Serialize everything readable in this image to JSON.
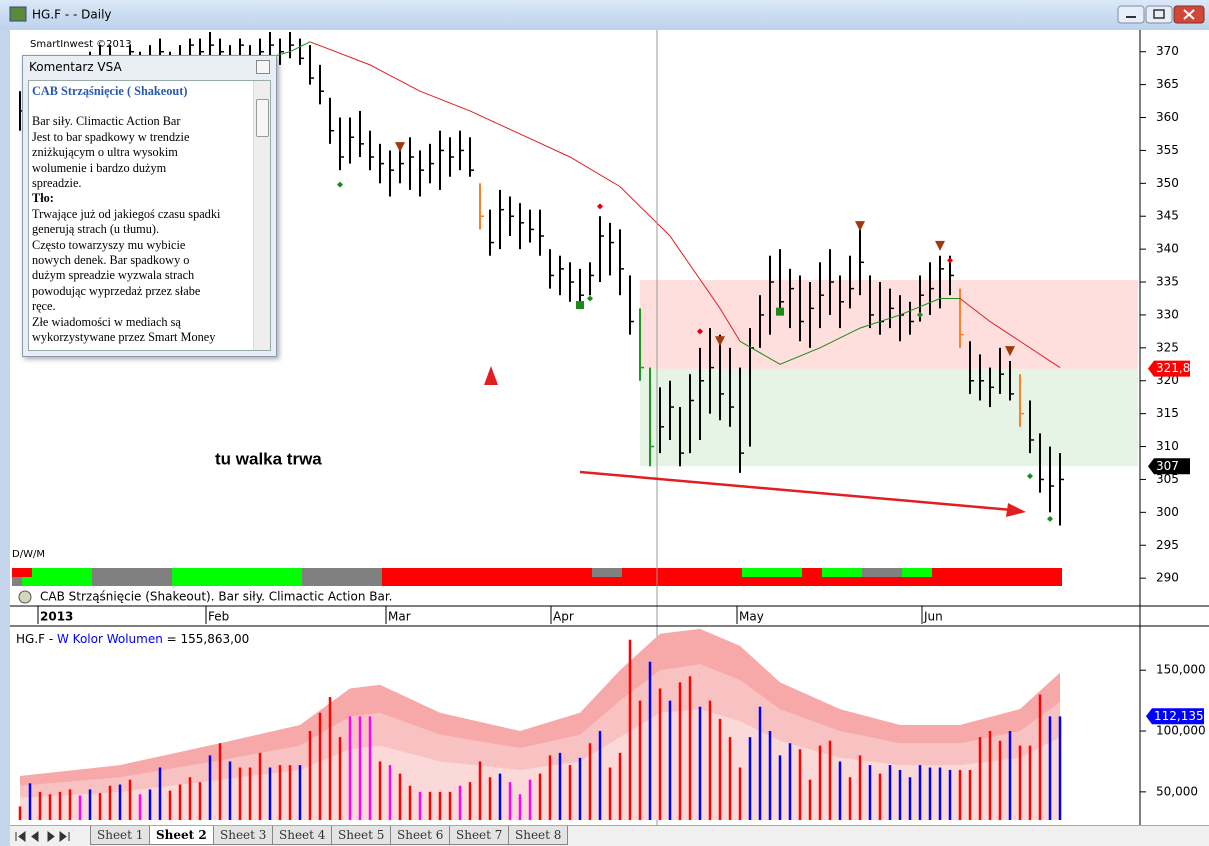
{
  "window": {
    "title": "HG.F -  - Daily"
  },
  "watermark": "SmartInwest ©2013",
  "chart_data": [
    {
      "type": "ohlc",
      "color": "#000000",
      "xlim": [
        -1,
        112
      ],
      "xticks": [
        {
          "value": 1.8,
          "label": "2013"
        },
        {
          "value": 18.6,
          "label": "Feb"
        },
        {
          "value": 36.6,
          "label": "Mar"
        },
        {
          "value": 53.1,
          "label": "Apr"
        },
        {
          "value": 71.7,
          "label": "May"
        },
        {
          "value": 90.2,
          "label": "Jun"
        }
      ],
      "ylim": [
        288.2,
        373.3
      ],
      "yticks": [
        290,
        295,
        300,
        305,
        310,
        315,
        320,
        325,
        330,
        335,
        340,
        345,
        350,
        355,
        360,
        365,
        370
      ],
      "low": [
        358,
        357,
        359,
        361,
        362,
        363,
        362,
        364,
        365,
        366,
        364,
        366,
        365,
        366,
        367,
        365,
        366,
        367,
        368,
        369,
        368,
        367,
        368,
        367,
        368,
        369,
        368,
        369,
        368,
        365,
        362,
        356,
        352,
        353,
        354,
        352,
        350,
        348,
        350,
        349,
        348,
        350,
        349,
        351,
        352,
        351,
        343,
        339,
        340,
        342,
        340,
        341,
        339,
        334,
        333,
        332,
        331,
        333,
        335,
        336,
        333,
        327,
        320,
        307,
        309,
        311,
        307,
        309,
        311,
        315,
        314,
        313,
        306,
        310,
        325,
        327,
        330,
        328,
        326,
        325,
        328,
        330,
        328,
        331,
        333,
        328,
        327,
        328,
        326,
        327,
        329,
        330,
        331,
        333,
        325,
        318,
        317,
        316,
        318,
        317,
        313,
        309,
        303,
        300,
        298
      ],
      "high": [
        364,
        363,
        366,
        367,
        368,
        368,
        367,
        370,
        371,
        371,
        369,
        371,
        370,
        371,
        372,
        370,
        371,
        372,
        372,
        373,
        372,
        371,
        372,
        371,
        372,
        373,
        372,
        373,
        372,
        371,
        368,
        363,
        360,
        360,
        361,
        358,
        356,
        355,
        356,
        357,
        355,
        356,
        358,
        357,
        358,
        357,
        350,
        346,
        349,
        348,
        347,
        346,
        346,
        340,
        339,
        338,
        337,
        338,
        345,
        344,
        343,
        336,
        331,
        322,
        319,
        320,
        316,
        321,
        325,
        328,
        327,
        325,
        322,
        328,
        333,
        339,
        340,
        337,
        336,
        335,
        338,
        340,
        336,
        339,
        343,
        336,
        335,
        334,
        333,
        332,
        336,
        338,
        339,
        339,
        334,
        326,
        324,
        322,
        325,
        323,
        321,
        317,
        312,
        310,
        309
      ],
      "close": [
        361,
        360,
        364,
        365,
        366,
        364,
        365,
        368,
        369,
        367,
        368,
        370,
        366,
        369,
        370,
        368,
        369,
        371,
        370,
        371,
        370,
        369,
        371,
        368,
        370,
        371,
        370,
        371,
        369,
        366,
        364,
        358,
        354,
        357,
        356,
        354,
        353,
        352,
        353,
        354,
        352,
        353,
        355,
        354,
        355,
        352,
        345,
        341,
        346,
        345,
        344,
        343,
        342,
        336,
        337,
        335,
        333,
        336,
        342,
        341,
        337,
        329,
        322,
        310,
        313,
        316,
        309,
        317,
        320,
        322,
        318,
        316,
        309,
        325,
        330,
        335,
        332,
        334,
        329,
        331,
        333,
        335,
        332,
        334,
        338,
        330,
        329,
        331,
        330,
        329,
        333,
        334,
        337,
        336,
        327,
        320,
        320,
        319,
        321,
        318,
        315,
        311,
        305,
        304,
        305
      ],
      "highlights": [
        {
          "index": 46,
          "color": "#ff7f27"
        },
        {
          "index": 62,
          "color": "#1a9a1a"
        },
        {
          "index": 63,
          "color": "#1a9a1a"
        },
        {
          "index": 94,
          "color": "#ff7f27"
        },
        {
          "index": 100,
          "color": "#ff7f27"
        }
      ],
      "moving_average": [
        {
          "color": "#e02020",
          "x": [
            29,
            35,
            40,
            45,
            50,
            55,
            60,
            65,
            70,
            72,
            null,
            94,
            97,
            100,
            104
          ],
          "values": [
            371.5,
            368,
            364,
            361,
            357.5,
            354,
            349.5,
            342,
            331,
            326,
            null,
            332.5,
            329,
            326,
            322
          ]
        },
        {
          "color": "#1a8a1a",
          "x": [
            12,
            20,
            27,
            29,
            null,
            72,
            76,
            80,
            84,
            88,
            92,
            94
          ],
          "values": [
            362,
            367,
            370,
            371.5,
            null,
            326,
            322.5,
            325,
            328,
            330,
            332.5,
            332.5
          ]
        }
      ],
      "signals": [
        {
          "index": 38,
          "value": 355.5,
          "shape": "triangle",
          "color": "#a0380a"
        },
        {
          "index": 70,
          "value": 326,
          "shape": "triangle",
          "color": "#a0380a"
        },
        {
          "index": 84,
          "value": 343.5,
          "shape": "triangle",
          "color": "#a0380a"
        },
        {
          "index": 92,
          "value": 340.5,
          "shape": "triangle",
          "color": "#a0380a"
        },
        {
          "index": 99,
          "value": 324.5,
          "shape": "triangle",
          "color": "#a0380a"
        },
        {
          "index": 32,
          "value": 349.8,
          "shape": "diamond",
          "color": "#1a8a1a"
        },
        {
          "index": 58,
          "value": 346.5,
          "shape": "diamond",
          "color": "#e00000"
        },
        {
          "index": 57,
          "value": 332.5,
          "shape": "diamond",
          "color": "#1a8a1a"
        },
        {
          "index": 68,
          "value": 327.5,
          "shape": "diamond",
          "color": "#e00000"
        },
        {
          "index": 93,
          "value": 338.3,
          "shape": "diamond",
          "color": "#e00000"
        },
        {
          "index": 90,
          "value": 330,
          "shape": "diamond",
          "color": "#1a8a1a"
        },
        {
          "index": 101,
          "value": 305.5,
          "shape": "diamond",
          "color": "#1a8a1a"
        },
        {
          "index": 103,
          "value": 299,
          "shape": "diamond",
          "color": "#1a8a1a"
        },
        {
          "index": 56,
          "value": 331.5,
          "shape": "square",
          "color": "#1a8a1a"
        },
        {
          "index": 76,
          "value": 330.5,
          "shape": "square",
          "color": "#1a8a1a"
        }
      ],
      "zones": [
        {
          "from": 321.8,
          "to": 335.3,
          "x_from": 62,
          "color": "#ffdede"
        },
        {
          "from": 307,
          "to": 321.8,
          "x_from": 62,
          "color": "#e6f4e6"
        }
      ],
      "price_labels": [
        {
          "value": 321.845,
          "label": "321,845",
          "color": "#ff0000"
        },
        {
          "value": 307,
          "label": "307",
          "color": "#000000"
        }
      ],
      "status_strip": [
        [
          [
            0,
            2,
            "#ff0000"
          ],
          [
            2,
            8,
            "#00ff00"
          ],
          [
            8,
            16,
            "#808080"
          ],
          [
            16,
            29,
            "#00ff00"
          ],
          [
            29,
            37,
            "#808080"
          ],
          [
            37,
            58,
            "#ff0000"
          ],
          [
            58,
            61,
            "#808080"
          ],
          [
            61,
            73,
            "#ff0000"
          ],
          [
            73,
            79,
            "#00ff00"
          ],
          [
            79,
            81,
            "#ff0000"
          ],
          [
            81,
            85,
            "#00ff00"
          ],
          [
            85,
            89,
            "#808080"
          ],
          [
            89,
            92,
            "#00ff00"
          ],
          [
            92,
            105,
            "#ff0000"
          ]
        ],
        [
          [
            0,
            1,
            "#808080"
          ],
          [
            1,
            8,
            "#00ff00"
          ],
          [
            8,
            16,
            "#808080"
          ],
          [
            16,
            29,
            "#00ff00"
          ],
          [
            29,
            37,
            "#808080"
          ],
          [
            37,
            105,
            "#ff0000"
          ]
        ]
      ],
      "period_label": "D/W/M",
      "legend_text": "CAB Strząśnięcie (Shakeout). Bar siły. Climactic Action Bar.",
      "annotation": "tu walka trwa"
    },
    {
      "type": "volume",
      "title": "HG.F - ",
      "indicator": "W Kolor Wolumen",
      "readout": " = 155,863,00",
      "xlim": [
        -1,
        112
      ],
      "ylim": [
        26860,
        184700
      ],
      "yticks": [
        {
          "value": 50000,
          "label": "50,000"
        },
        {
          "value": 100000,
          "label": "100,000"
        },
        {
          "value": 150000,
          "label": "150,000"
        }
      ],
      "values": [
        38000,
        57000,
        50000,
        48000,
        50000,
        52000,
        47000,
        52000,
        49000,
        55000,
        56000,
        60000,
        48000,
        52000,
        70000,
        51000,
        56000,
        62000,
        58000,
        80000,
        90000,
        75000,
        70000,
        70000,
        82000,
        70000,
        72000,
        72000,
        72000,
        100000,
        115000,
        128000,
        95000,
        112000,
        112000,
        112000,
        75000,
        72000,
        65000,
        55000,
        50000,
        50000,
        50000,
        50000,
        55000,
        58000,
        75000,
        62000,
        65000,
        58000,
        48000,
        60000,
        65000,
        80000,
        82000,
        72000,
        78000,
        90000,
        100000,
        70000,
        82000,
        175000,
        125000,
        157000,
        135000,
        125000,
        140000,
        145000,
        120000,
        125000,
        110000,
        95000,
        70000,
        95000,
        120000,
        100000,
        80000,
        90000,
        85000,
        60000,
        88000,
        92000,
        75000,
        62000,
        80000,
        72000,
        65000,
        72000,
        68000,
        62000,
        72000,
        70000,
        70000,
        68000,
        68000,
        68000,
        95000,
        100000,
        92000,
        100000,
        88000,
        88000,
        130000,
        112000,
        112000
      ],
      "colors": [
        "#ff0000",
        "#0000ff",
        "#ff0000",
        "#ff0000",
        "#ff0000",
        "#ff0000",
        "#ff00ff",
        "#0000ff",
        "#ff0000",
        "#ff0000",
        "#0000ff",
        "#ff0000",
        "#ff00ff",
        "#0000ff",
        "#0000ff",
        "#ff0000",
        "#ff0000",
        "#ff0000",
        "#ff0000",
        "#0000ff",
        "#ff0000",
        "#0000ff",
        "#ff0000",
        "#ff0000",
        "#ff0000",
        "#0000ff",
        "#ff0000",
        "#ff0000",
        "#0000ff",
        "#ff0000",
        "#ff0000",
        "#ff0000",
        "#ff0000",
        "#ff00ff",
        "#ff00ff",
        "#ff00ff",
        "#ff0000",
        "#ff00ff",
        "#ff0000",
        "#ff0000",
        "#ff00ff",
        "#ff0000",
        "#ff0000",
        "#ff0000",
        "#ff00ff",
        "#ff0000",
        "#ff0000",
        "#ff0000",
        "#0000ff",
        "#ff00ff",
        "#ff00ff",
        "#ff00ff",
        "#ff0000",
        "#ff0000",
        "#0000ff",
        "#ff0000",
        "#0000ff",
        "#ff0000",
        "#0000ff",
        "#ff0000",
        "#ff0000",
        "#ff0000",
        "#ff0000",
        "#0000ff",
        "#ff0000",
        "#0000ff",
        "#ff0000",
        "#ff0000",
        "#0000ff",
        "#ff0000",
        "#ff0000",
        "#ff0000",
        "#ff0000",
        "#0000ff",
        "#0000ff",
        "#0000ff",
        "#0000ff",
        "#0000ff",
        "#ff0000",
        "#ff0000",
        "#ff0000",
        "#ff0000",
        "#0000ff",
        "#ff0000",
        "#ff0000",
        "#0000ff",
        "#ff0000",
        "#0000ff",
        "#0000ff",
        "#0000ff",
        "#0000ff",
        "#0000ff",
        "#0000ff",
        "#0000ff",
        "#ff0000",
        "#ff0000",
        "#ff0000",
        "#ff0000",
        "#ff0000",
        "#0000ff",
        "#ff0000",
        "#ff0000",
        "#ff0000",
        "#0000ff",
        "#0000ff"
      ],
      "bands": [
        {
          "color": "#f7a8a8",
          "x": [
            0,
            10,
            20,
            28,
            33,
            36,
            42,
            50,
            56,
            60,
            64,
            68,
            72,
            76,
            82,
            88,
            94,
            100,
            104
          ],
          "values": [
            63000,
            72000,
            90000,
            105000,
            135000,
            138000,
            115000,
            100000,
            115000,
            150000,
            180000,
            184000,
            170000,
            140000,
            118000,
            105000,
            105000,
            118000,
            148000
          ]
        },
        {
          "color": "#f9c2c2",
          "x": [
            0,
            10,
            20,
            28,
            33,
            36,
            42,
            50,
            56,
            60,
            64,
            68,
            72,
            76,
            82,
            88,
            94,
            100,
            104
          ],
          "values": [
            55000,
            62000,
            76000,
            88000,
            112000,
            115000,
            97000,
            86000,
            97000,
            125000,
            150000,
            155000,
            142000,
            118000,
            100000,
            90000,
            90000,
            100000,
            124000
          ]
        },
        {
          "color": "#fbd9d9",
          "x": [
            0,
            10,
            20,
            28,
            33,
            36,
            42,
            50,
            56,
            60,
            64,
            68,
            72,
            76,
            82,
            88,
            94,
            100,
            104
          ],
          "values": [
            45000,
            50000,
            60000,
            68000,
            85000,
            88000,
            75000,
            68000,
            75000,
            95000,
            115000,
            118000,
            108000,
            92000,
            78000,
            72000,
            72000,
            78000,
            95000
          ]
        }
      ],
      "last_label": {
        "value": 112135,
        "label": "112,135",
        "color": "#0000ff"
      }
    }
  ],
  "comment_panel": {
    "title": "Komentarz VSA",
    "heading": "CAB Strząśnięcie ( Shakeout)",
    "lines": [
      "Bar siły. Climactic Action Bar",
      "Jest to bar spadkowy  w  trendzie",
      "zniżkującym o ultra wysokim",
      "wolumenie i bardzo dużym",
      "spreadzie.",
      "Tło:",
      "Trwające już od jakiegoś czasu spadki",
      "generują strach (u tłumu).",
      "Często towarzyszy mu wybicie",
      "nowych denek. Bar spadkowy o",
      "dużym spreadzie wyzwala  strach",
      "powodując wyprzedaż  przez słabe",
      "ręce.",
      "Złe wiadomości w mediach są",
      "wykorzystywane przez Smart Money"
    ],
    "bold_lines": [
      5
    ]
  },
  "sheet_tabs": {
    "tabs": [
      "Sheet 1",
      "Sheet 2",
      "Sheet 3",
      "Sheet 4",
      "Sheet 5",
      "Sheet 6",
      "Sheet 7",
      "Sheet 8"
    ],
    "active": 1
  }
}
